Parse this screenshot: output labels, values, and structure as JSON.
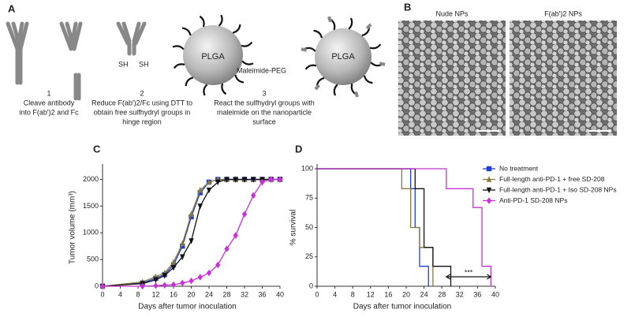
{
  "panel_a": {
    "label": "A",
    "steps": [
      {
        "number": "1",
        "lines": [
          "Cleave antibody",
          "into F(ab′)2 and Fc"
        ]
      },
      {
        "number": "2",
        "lines": [
          "Reduce F(ab′)2/Fc using DTT to",
          "obtain free sulfhydryl groups in",
          "hinge region"
        ]
      },
      {
        "number": "3",
        "lines": [
          "React the sulfhydryl groups with",
          "maleimide on the nanoparticle",
          "surface"
        ]
      }
    ],
    "sh_labels": [
      "SH",
      "SH"
    ],
    "particle_labels": [
      "PLGA",
      "PLGA"
    ],
    "linker": "Maleimide-PEG"
  },
  "panel_b": {
    "label": "B",
    "images": [
      "Nude NPs",
      "F(ab′)2 NPs"
    ]
  },
  "chart_data": [
    {
      "type": "line",
      "panel": "C",
      "xlabel": "Days after tumor inoculation",
      "ylabel": "Tumor volume (mm³)",
      "x": [
        0,
        9,
        12,
        14,
        16,
        18,
        20,
        22,
        24,
        26,
        28,
        30,
        32,
        34,
        36,
        38,
        40
      ],
      "xlim": [
        0,
        40
      ],
      "xticks": [
        0,
        4,
        8,
        12,
        16,
        20,
        24,
        28,
        32,
        36,
        40
      ],
      "ylim": [
        0,
        2200
      ],
      "yticks": [
        0,
        500,
        1000,
        1500,
        2000
      ],
      "series": [
        {
          "color": "#1f3fd6",
          "marker": "square",
          "values": [
            0,
            60,
            150,
            220,
            400,
            750,
            1300,
            1750,
            1950,
            2000,
            2000,
            2000,
            2000,
            2000,
            2000,
            2000,
            2000
          ]
        },
        {
          "color": "#8a7a3a",
          "marker": "triangle",
          "values": [
            0,
            80,
            180,
            250,
            450,
            800,
            1350,
            1800,
            1950,
            2000,
            2000,
            2000,
            2000,
            2000,
            2000,
            2000,
            2000
          ]
        },
        {
          "color": "#111111",
          "marker": "triangle-down",
          "values": [
            0,
            50,
            120,
            200,
            350,
            550,
            850,
            1500,
            1800,
            1950,
            2000,
            2000,
            2000,
            2000,
            2000,
            2000,
            2000
          ]
        },
        {
          "color": "#c832d8",
          "marker": "diamond",
          "values": [
            0,
            0,
            10,
            20,
            30,
            60,
            100,
            170,
            250,
            400,
            700,
            950,
            1350,
            1700,
            1950,
            2000,
            2000
          ]
        }
      ]
    },
    {
      "type": "line",
      "step": true,
      "panel": "D",
      "xlabel": "Days after tumor inoculation",
      "ylabel": "% survival",
      "xlim": [
        0,
        40
      ],
      "xticks": [
        0,
        4,
        8,
        12,
        16,
        20,
        24,
        28,
        32,
        36,
        40
      ],
      "ylim": [
        0,
        100
      ],
      "yticks": [
        0,
        25,
        50,
        75,
        100
      ],
      "annotation": "***",
      "series": [
        {
          "name": "No treatment",
          "color": "#1f3fd6",
          "marker": "square",
          "x": [
            0,
            21,
            22,
            23,
            25
          ],
          "values": [
            100,
            83,
            50,
            17,
            0
          ]
        },
        {
          "name": "Full-length anti-PD-1 + free SD-208",
          "color": "#8a7a3a",
          "marker": "triangle",
          "x": [
            0,
            19,
            21,
            23,
            26
          ],
          "values": [
            100,
            83,
            50,
            33,
            0
          ]
        },
        {
          "name": "Full-length anti-PD-1 + Iso SD-208 NPs",
          "color": "#111111",
          "marker": "triangle-down",
          "x": [
            0,
            22,
            24,
            26,
            30
          ],
          "values": [
            100,
            83,
            33,
            17,
            0
          ]
        },
        {
          "name": "Anti-PD-1 SD-208 NPs",
          "color": "#c832d8",
          "marker": "diamond",
          "x": [
            0,
            29,
            35,
            37,
            39
          ],
          "values": [
            100,
            83,
            67,
            17,
            0
          ]
        }
      ]
    }
  ]
}
